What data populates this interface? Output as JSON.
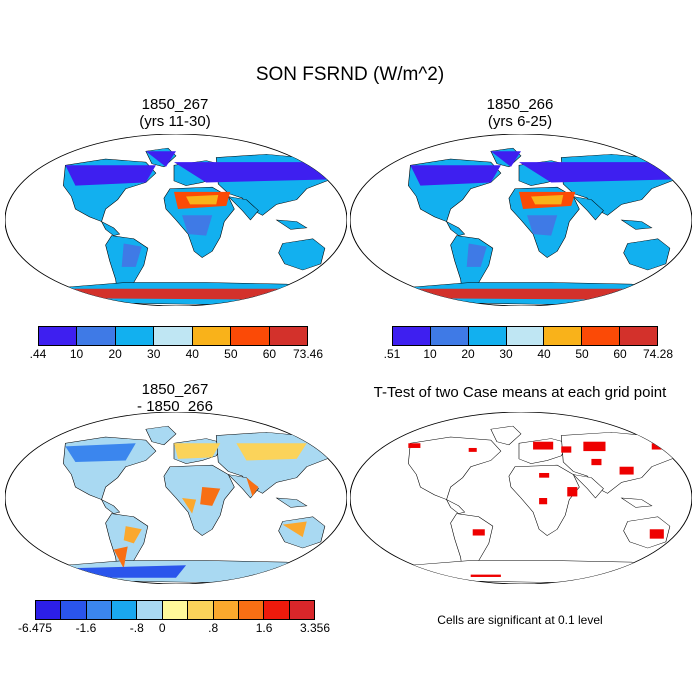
{
  "title": "SON FSRND (W/m^2)",
  "panels": [
    {
      "title_line1": "1850_267",
      "title_line2": "(yrs 11-30)"
    },
    {
      "title_line1": "1850_266",
      "title_line2": "(yrs 6-25)"
    },
    {
      "title_line1": "1850_267",
      "title_line2": "- 1850_266"
    },
    {
      "title_line1": "T-Test of two Case means at each grid point",
      "title_line2": ""
    }
  ],
  "colorbars": [
    {
      "colors": [
        "#3e1ff0",
        "#3f7ae6",
        "#12b0ef",
        "#bfe6f3",
        "#f9b21a",
        "#fb4a06",
        "#d3312b"
      ],
      "labels": [
        ".44",
        "10",
        "20",
        "30",
        "40",
        "50",
        "60",
        "73.46"
      ]
    },
    {
      "colors": [
        "#3e1ff0",
        "#3f7ae6",
        "#12b0ef",
        "#bfe6f3",
        "#f9b21a",
        "#fb4a06",
        "#d3312b"
      ],
      "labels": [
        ".51",
        "10",
        "20",
        "30",
        "40",
        "50",
        "60",
        "74.28"
      ]
    },
    {
      "colors": [
        "#2c1fe8",
        "#2a55ec",
        "#3b86ee",
        "#1aa7ef",
        "#a9d9f2",
        "#fff99a",
        "#fbd35a",
        "#fba82d",
        "#f86f14",
        "#ef1a0c",
        "#d8262a"
      ],
      "labels": [
        "-6.475",
        "-1.6",
        "-.8",
        "0",
        ".8",
        "1.6",
        "3.356"
      ]
    }
  ],
  "footnote": "Cells are significant at 0.1 level",
  "colors": {
    "ocean": "#ffffff",
    "sig": "#ee0000"
  }
}
